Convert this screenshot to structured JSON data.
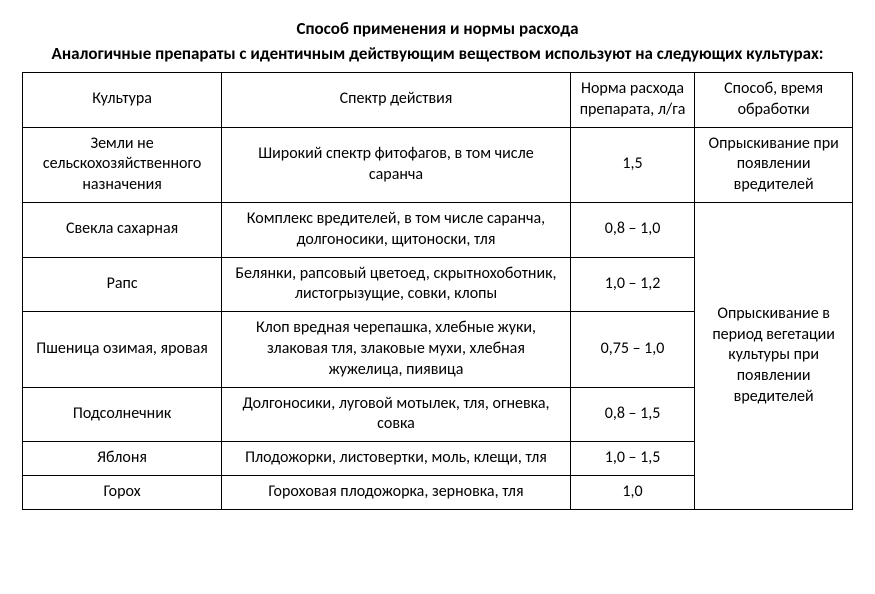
{
  "title": "Способ применения и нормы расхода",
  "subtitle": "Аналогичные препараты с идентичным действующим веществом используют на следующих культурах:",
  "table": {
    "columns": [
      "Культура",
      "Спектр действия",
      "Норма расхода препарата, л/га",
      "Способ, время обработки"
    ],
    "rows": [
      {
        "culture": "Земли не сельскохозяйственного назначения",
        "spectrum": "Широкий спектр фитофагов, в том числе саранча",
        "rate": "1,5",
        "method": "Опрыскивание при появлении вредителей"
      },
      {
        "culture": "Свекла сахарная",
        "spectrum": "Комплекс вредителей, в том числе саранча, долгоносики, щитоноски, тля",
        "rate": "0,8 – 1,0",
        "method": "Опрыскивание в период вегетации культуры при появлении вредителей"
      },
      {
        "culture": "Рапс",
        "spectrum": "Белянки, рапсовый цветоед, скрытнохоботник, листогрызущие, совки, клопы",
        "rate": "1,0 – 1,2"
      },
      {
        "culture": "Пшеница озимая, яровая",
        "spectrum": "Клоп вредная черепашка, хлебные жуки, злаковая тля, злаковые мухи, хлебная жужелица, пиявица",
        "rate": "0,75 – 1,0"
      },
      {
        "culture": "Подсолнечник",
        "spectrum": "Долгоносики, луговой мотылек, тля, огневка, совка",
        "rate": "0,8 – 1,5"
      },
      {
        "culture": "Яблоня",
        "spectrum": "Плодожорки, листовертки, моль, клещи, тля",
        "rate": "1,0 – 1,5"
      },
      {
        "culture": "Горох",
        "spectrum": "Гороховая плодожорка, зерновка, тля",
        "rate": "1,0"
      }
    ]
  },
  "styling": {
    "background_color": "#ffffff",
    "text_color": "#000000",
    "border_color": "#000000",
    "font_family": "Calibri",
    "title_fontsize": 17,
    "title_fontweight": "bold",
    "cell_fontsize": 16,
    "column_widths_percent": [
      24,
      42,
      15,
      19
    ]
  }
}
